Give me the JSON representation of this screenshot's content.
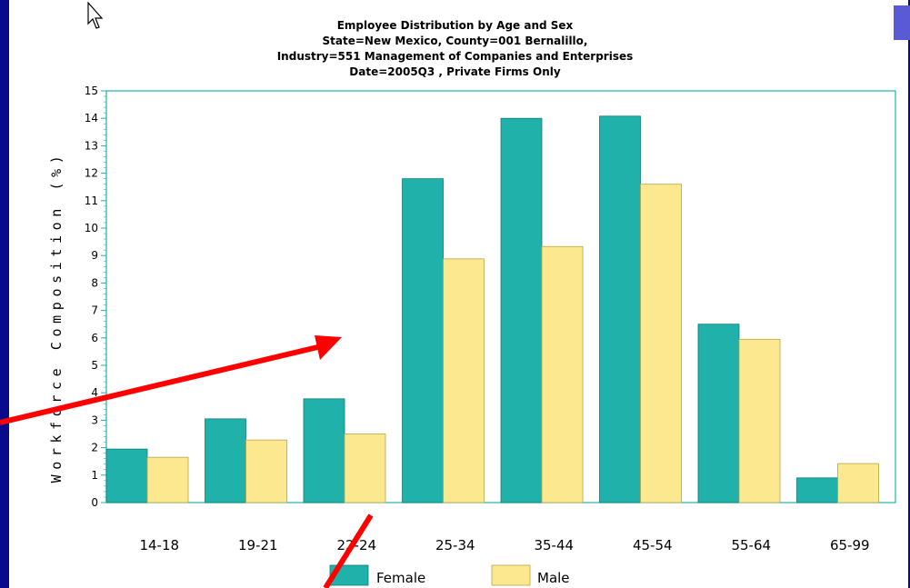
{
  "title_lines": [
    "Employee Distribution by Age and Sex",
    "State=New Mexico, County=001 Bernalillo,",
    "Industry=551 Management of Companies and Enterprises",
    "Date=2005Q3 , Private Firms Only"
  ],
  "colors": {
    "background": "#0a0a8c",
    "female": "#20b2aa",
    "male": "#fce88f",
    "axis": "#20b2aa",
    "annotation_arrow": "#ff0000"
  },
  "chart_data": {
    "type": "bar",
    "title": "Employee Distribution by Age and Sex",
    "subtitle": "State=New Mexico, County=001 Bernalillo, Industry=551 Management of Companies and Enterprises, Date=2005Q3 , Private Firms Only",
    "ylabel": "Workforce Composition (%)",
    "xlabel": "",
    "ylim": [
      0,
      15
    ],
    "yticks": [
      0,
      1,
      2,
      3,
      4,
      5,
      6,
      7,
      8,
      9,
      10,
      11,
      12,
      13,
      14,
      15
    ],
    "categories": [
      "14-18",
      "19-21",
      "22-24",
      "25-34",
      "35-44",
      "45-54",
      "55-64",
      "65-99"
    ],
    "series": [
      {
        "name": "Female",
        "values": [
          1.95,
          3.05,
          3.78,
          11.8,
          14.0,
          14.08,
          6.5,
          0.9
        ]
      },
      {
        "name": "Male",
        "values": [
          1.65,
          2.28,
          2.5,
          8.88,
          9.33,
          11.6,
          5.95,
          1.42
        ]
      }
    ],
    "legend": "bottom-center",
    "grid": false
  }
}
